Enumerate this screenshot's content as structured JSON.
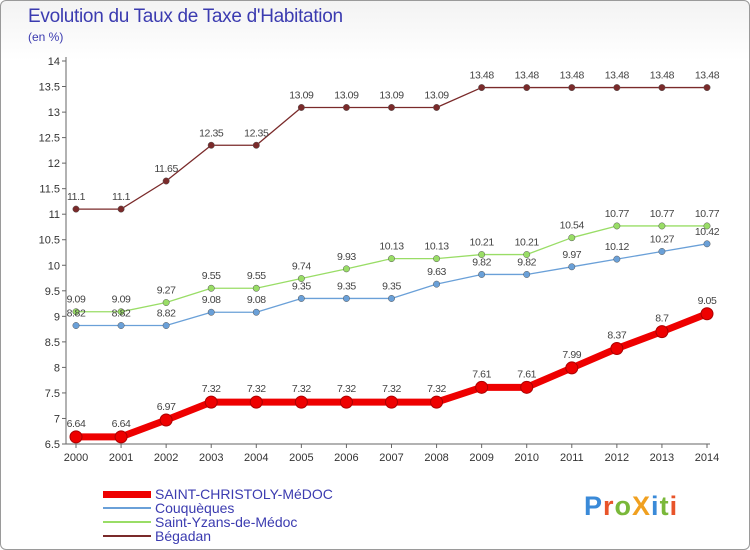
{
  "title": "Evolution du Taux de Taxe d'Habitation",
  "subtitle": "(en %)",
  "logo": {
    "text": "ProXiti",
    "colors": [
      "#3a8ad8",
      "#e8542a",
      "#7ab83a",
      "#f0a020",
      "#3a8ad8",
      "#7ab83a",
      "#e8542a"
    ]
  },
  "chart_data": {
    "type": "line",
    "x": [
      "2000",
      "2001",
      "2002",
      "2003",
      "2004",
      "2005",
      "2006",
      "2007",
      "2008",
      "2009",
      "2010",
      "2011",
      "2012",
      "2013",
      "2014"
    ],
    "ylim": [
      6.5,
      14
    ],
    "yticks": [
      "6.5",
      "7",
      "7.5",
      "8",
      "8.5",
      "9",
      "9.5",
      "10",
      "10.5",
      "11",
      "11.5",
      "12",
      "12.5",
      "13",
      "13.5",
      "14"
    ],
    "grid": false,
    "legend_position": "bottom-left",
    "series": [
      {
        "name": "SAINT-CHRISTOLY-MéDOC",
        "color": "#ee0000",
        "values": [
          6.64,
          6.64,
          6.97,
          7.32,
          7.32,
          7.32,
          7.32,
          7.32,
          7.32,
          7.61,
          7.61,
          7.99,
          8.37,
          8.7,
          9.05
        ],
        "labels": [
          "6.64",
          "6.64",
          "6.97",
          "7.32",
          "7.32",
          "7.32",
          "7.32",
          "7.32",
          "7.32",
          "7.61",
          "7.61",
          "7.99",
          "8.37",
          "8.7",
          "9.05"
        ]
      },
      {
        "name": "Couquèques",
        "color": "#6aa0d8",
        "values": [
          8.82,
          8.82,
          8.82,
          9.08,
          9.08,
          9.35,
          9.35,
          9.35,
          9.63,
          9.82,
          9.82,
          9.97,
          10.12,
          10.27,
          10.42
        ],
        "labels": [
          "8.82",
          "8.82",
          "8.82",
          "9.08",
          "9.08",
          "9.35",
          "9.35",
          "9.35",
          "9.63",
          "9.82",
          "9.82",
          "9.97",
          "10.12",
          "10.27",
          "10.42"
        ]
      },
      {
        "name": "Saint-Yzans-de-Médoc",
        "color": "#99dd66",
        "values": [
          9.09,
          9.09,
          9.27,
          9.55,
          9.55,
          9.74,
          9.93,
          10.13,
          10.13,
          10.21,
          10.21,
          10.54,
          10.77,
          10.77,
          10.77
        ],
        "labels": [
          "9.09",
          "9.09",
          "9.27",
          "9.55",
          "9.55",
          "9.74",
          "9.93",
          "10.13",
          "10.13",
          "10.21",
          "10.21",
          "10.54",
          "10.77",
          "10.77",
          "10.77"
        ]
      },
      {
        "name": "Bégadan",
        "color": "#7a2a2a",
        "values": [
          11.1,
          11.1,
          11.65,
          12.35,
          12.35,
          13.09,
          13.09,
          13.09,
          13.09,
          13.48,
          13.48,
          13.48,
          13.48,
          13.48,
          13.48
        ],
        "labels": [
          "11.1",
          "11.1",
          "11.65",
          "12.35",
          "12.35",
          "13.09",
          "13.09",
          "13.09",
          "13.09",
          "13.48",
          "13.48",
          "13.48",
          "13.48",
          "13.48",
          "13.48"
        ]
      }
    ]
  }
}
